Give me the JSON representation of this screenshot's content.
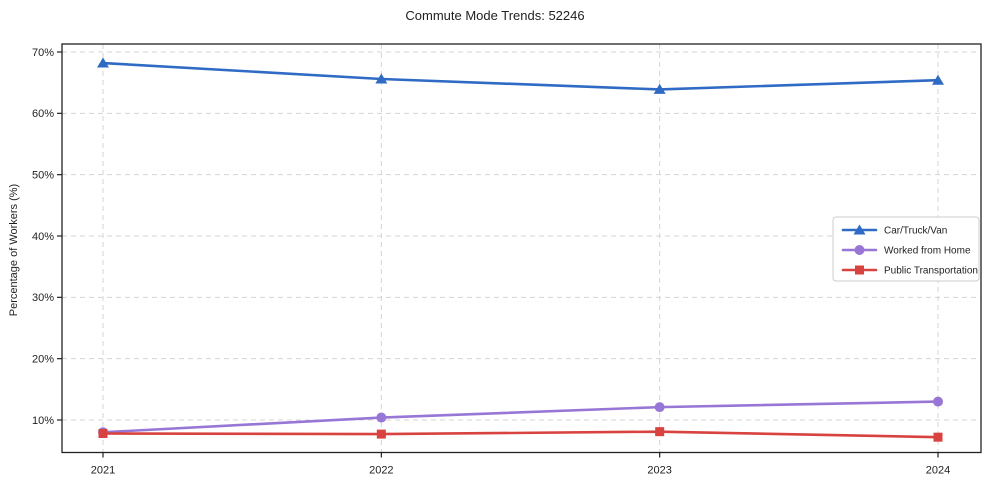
{
  "window": {
    "background": "#ffffff"
  },
  "chart_data": {
    "type": "line",
    "title": "Commute Mode Trends: 52246",
    "xlabel": "",
    "ylabel": "Percentage of Workers (%)",
    "x": [
      2021,
      2022,
      2023,
      2024
    ],
    "x_tick_labels": [
      "2021",
      "2022",
      "2023",
      "2024"
    ],
    "y_ticks": [
      10,
      20,
      30,
      40,
      50,
      60,
      70
    ],
    "y_tick_labels": [
      "10%",
      "20%",
      "30%",
      "40%",
      "50%",
      "60%",
      "70%"
    ],
    "ylim": [
      4.8,
      71.3
    ],
    "grid": true,
    "grid_style": "dashed",
    "legend_position": "center-right",
    "series": [
      {
        "name": "Car/Truck/Van",
        "color": "#2f6bc4",
        "marker": "triangle",
        "values": [
          68.2,
          65.6,
          63.9,
          65.4
        ]
      },
      {
        "name": "Worked from Home",
        "color": "#9876d6",
        "marker": "circle",
        "values": [
          8.0,
          10.4,
          12.1,
          13.0
        ]
      },
      {
        "name": "Public Transportation",
        "color": "#d8423f",
        "marker": "square",
        "values": [
          7.8,
          7.7,
          8.1,
          7.2
        ]
      }
    ]
  },
  "colors": {
    "grid": "#d4d4d4",
    "spine": "#222222",
    "text": "#1f1f1f",
    "legend_border": "#cccccc",
    "legend_background": "#ffffff"
  }
}
